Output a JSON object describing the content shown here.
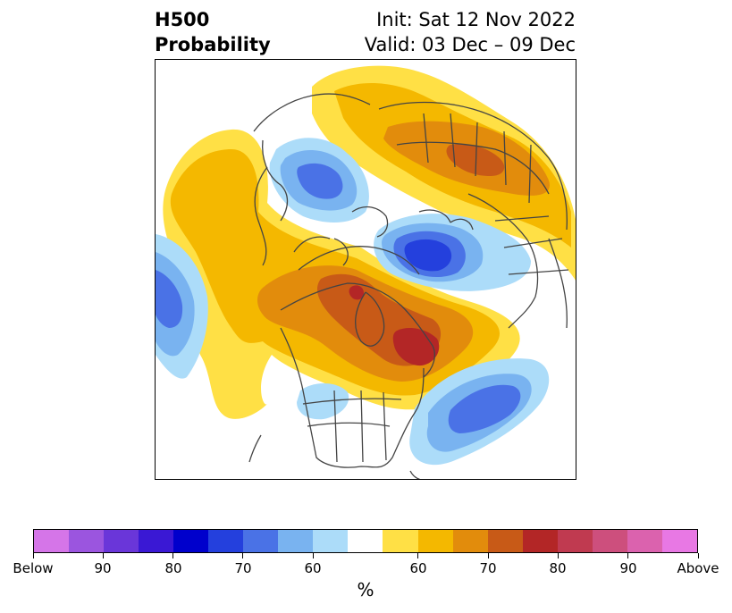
{
  "title": {
    "left_line1": "H500",
    "left_line2": "Probability",
    "right_line1": "Init: Sat 12 Nov 2022",
    "right_line2": "Valid: 03 Dec – 09 Dec"
  },
  "colorbar": {
    "colors": [
      "#d575e8",
      "#9b55df",
      "#6a36d9",
      "#3a18d4",
      "#0000cc",
      "#2440dd",
      "#4a72e6",
      "#79b3f0",
      "#acdcf9",
      "#ffffff",
      "#ffe045",
      "#f4b800",
      "#e28c0c",
      "#c85a17",
      "#b32626",
      "#c03a50",
      "#cd4f7d",
      "#db62ae",
      "#e878e4"
    ],
    "tick_labels": [
      "Below",
      "90",
      "80",
      "70",
      "60",
      "60",
      "70",
      "80",
      "90",
      "Above"
    ],
    "unit_label": "%"
  },
  "map": {
    "above_colors": {
      "p50": "#ffe045",
      "p60": "#f4b800",
      "p65": "#e28c0c",
      "p70": "#c85a17",
      "p75": "#b32626"
    },
    "below_colors": {
      "p50": "#acdcf9",
      "p60": "#79b3f0",
      "p65": "#4a72e6",
      "p70": "#2440dd"
    },
    "coastline_color": "#444444"
  }
}
